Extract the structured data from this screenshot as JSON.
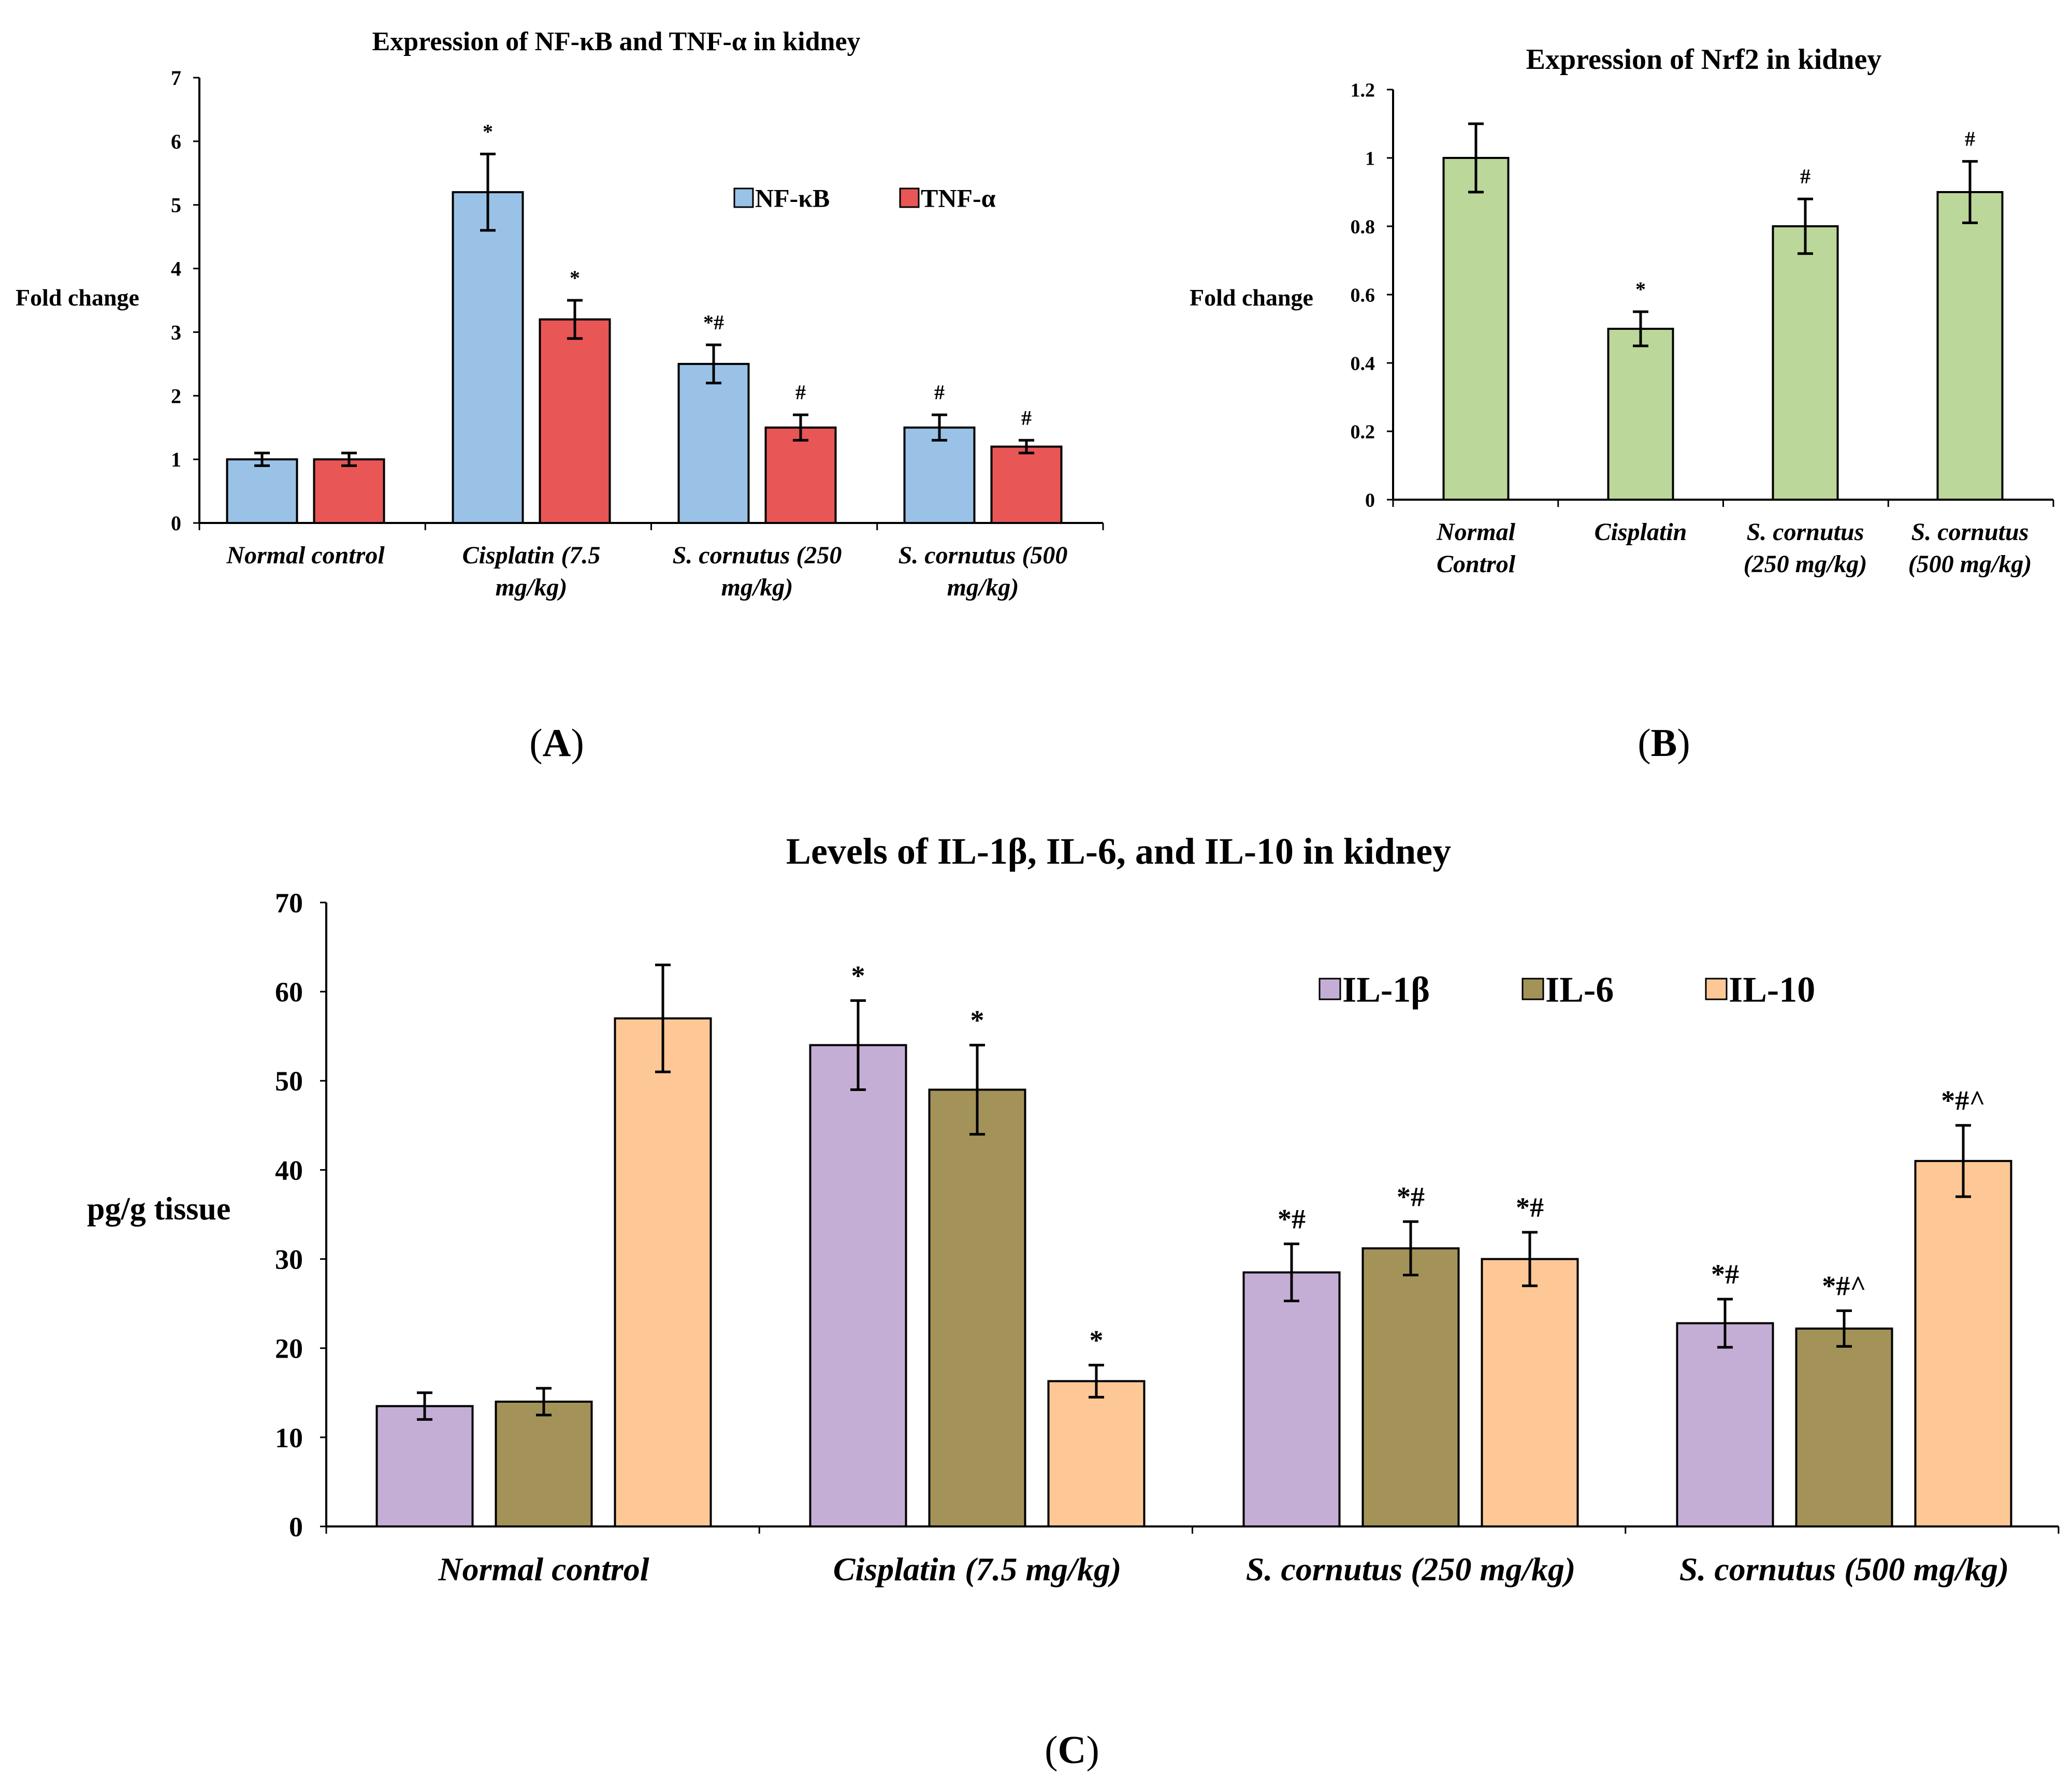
{
  "chart_data": [
    {
      "id": "A",
      "type": "bar",
      "title": "Expression of NF-κB and TNF-α in kidney",
      "ylabel": "Fold change",
      "xlabel": "",
      "ylim": [
        0,
        7
      ],
      "yticks": [
        "0",
        "1",
        "2",
        "3",
        "4",
        "5",
        "6",
        "7"
      ],
      "categories": [
        [
          "Normal control"
        ],
        [
          "Cisplatin (7.5",
          "mg/kg)"
        ],
        [
          "S. cornutus (250",
          "mg/kg)"
        ],
        [
          "S. cornutus (500",
          "mg/kg)"
        ]
      ],
      "series": [
        {
          "name": "NF-κB",
          "color": "#99C2E6",
          "values": [
            1.0,
            5.2,
            2.5,
            1.5
          ],
          "errors": [
            0.1,
            0.6,
            0.3,
            0.2
          ],
          "annotations": [
            "",
            "*",
            "*#",
            "#"
          ]
        },
        {
          "name": "TNF-α",
          "color": "#E85656",
          "values": [
            1.0,
            3.2,
            1.5,
            1.2
          ],
          "errors": [
            0.1,
            0.3,
            0.2,
            0.1
          ],
          "annotations": [
            "",
            "*",
            "#",
            "#"
          ]
        }
      ],
      "legend": "top-right",
      "panel_label": [
        "(",
        "A",
        ")"
      ]
    },
    {
      "id": "B",
      "type": "bar",
      "title": "Expression of Nrf2 in kidney",
      "ylabel": "Fold change",
      "xlabel": "",
      "ylim": [
        0,
        1.2
      ],
      "yticks": [
        "0",
        "0.2",
        "0.4",
        "0.6",
        "0.8",
        "1",
        "1.2"
      ],
      "categories": [
        [
          "Normal",
          "Control"
        ],
        [
          "Cisplatin"
        ],
        [
          "S. cornutus",
          "(250 mg/kg)"
        ],
        [
          "S. cornutus",
          "(500 mg/kg)"
        ]
      ],
      "series": [
        {
          "name": "Nrf2",
          "color": "#BCD79A",
          "values": [
            1.0,
            0.5,
            0.8,
            0.9
          ],
          "errors": [
            0.1,
            0.05,
            0.08,
            0.09
          ],
          "annotations": [
            "",
            "*",
            "#",
            "#"
          ]
        }
      ],
      "legend": "none",
      "panel_label": [
        "(",
        "B",
        ")"
      ]
    },
    {
      "id": "C",
      "type": "bar",
      "title": "Levels of IL-1β, IL-6, and IL-10 in kidney",
      "ylabel": "pg/g tissue",
      "xlabel": "",
      "ylim": [
        0,
        70
      ],
      "yticks": [
        "0",
        "10",
        "20",
        "30",
        "40",
        "50",
        "60",
        "70"
      ],
      "categories": [
        [
          "Normal control"
        ],
        [
          "Cisplatin (7.5 mg/kg)"
        ],
        [
          "S. cornutus (250 mg/kg)"
        ],
        [
          "S. cornutus (500 mg/kg)"
        ]
      ],
      "series": [
        {
          "name": "IL-1β",
          "color": "#C5AED6",
          "values": [
            13.5,
            54.0,
            28.5,
            22.8
          ],
          "errors": [
            1.5,
            5.0,
            3.2,
            2.7
          ],
          "annotations": [
            "",
            "*",
            "*#",
            "*#"
          ]
        },
        {
          "name": "IL-6",
          "color": "#A39358",
          "values": [
            14.0,
            49.0,
            31.2,
            22.2
          ],
          "errors": [
            1.5,
            5.0,
            3.0,
            2.0
          ],
          "annotations": [
            "",
            "*",
            "*#",
            "*#^"
          ]
        },
        {
          "name": "IL-10",
          "color": "#FDC896",
          "values": [
            57.0,
            16.3,
            30.0,
            41.0
          ],
          "errors": [
            6.0,
            1.8,
            3.0,
            4.0
          ],
          "annotations": [
            "",
            "*",
            "*#",
            "*#^"
          ]
        }
      ],
      "legend": "top-right",
      "panel_label": [
        "(",
        "C",
        ")"
      ]
    }
  ]
}
